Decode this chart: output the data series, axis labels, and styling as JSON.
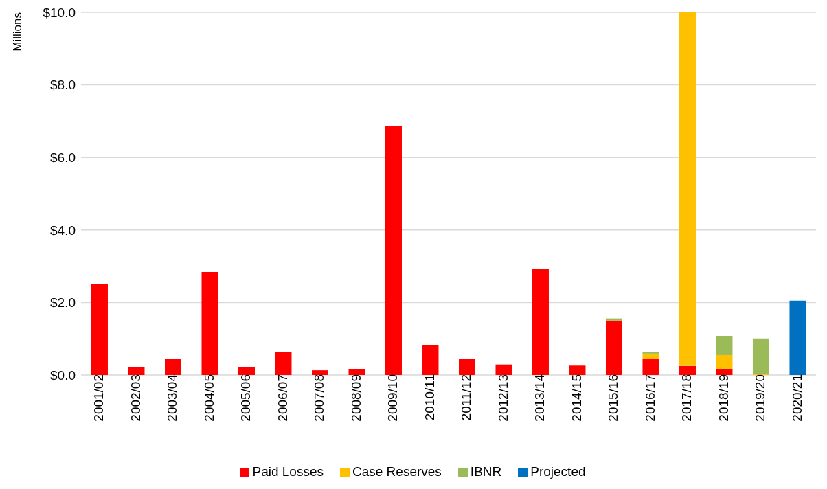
{
  "chart_data": {
    "type": "bar",
    "stacked": true,
    "ylabel": "Millions",
    "categories": [
      "2001/02",
      "2002/03",
      "2003/04",
      "2004/05",
      "2005/06",
      "2006/07",
      "2007/08",
      "2008/09",
      "2009/10",
      "2010/11",
      "2011/12",
      "2012/13",
      "2013/14",
      "2014/15",
      "2015/16",
      "2016/17",
      "2017/18",
      "2018/19",
      "2019/20",
      "2020/21"
    ],
    "series": [
      {
        "name": "Paid Losses",
        "color": "#ff0000",
        "values": [
          2.5,
          0.22,
          0.44,
          2.84,
          0.22,
          0.63,
          0.13,
          0.17,
          6.86,
          0.82,
          0.44,
          0.29,
          2.92,
          0.26,
          1.5,
          0.44,
          0.25,
          0.17,
          null,
          null
        ]
      },
      {
        "name": "Case Reserves",
        "color": "#ffc000",
        "values": [
          null,
          null,
          null,
          null,
          null,
          null,
          null,
          null,
          null,
          null,
          null,
          null,
          null,
          null,
          null,
          0.15,
          9.75,
          0.38,
          0.04,
          null
        ]
      },
      {
        "name": "IBNR",
        "color": "#9bbb59",
        "values": [
          null,
          null,
          null,
          null,
          null,
          null,
          null,
          null,
          null,
          null,
          null,
          null,
          null,
          null,
          0.06,
          0.04,
          null,
          0.53,
          0.97,
          null
        ]
      },
      {
        "name": "Projected",
        "color": "#0070c0",
        "values": [
          null,
          null,
          null,
          null,
          null,
          null,
          null,
          null,
          null,
          null,
          null,
          null,
          null,
          null,
          null,
          null,
          null,
          null,
          null,
          2.05
        ]
      }
    ],
    "ylim": [
      0,
      10
    ],
    "yticks": [
      {
        "value": 0,
        "label": "$0.0"
      },
      {
        "value": 2,
        "label": "$2.0"
      },
      {
        "value": 4,
        "label": "$4.0"
      },
      {
        "value": 6,
        "label": "$6.0"
      },
      {
        "value": 8,
        "label": "$8.0"
      },
      {
        "value": 10,
        "label": "$10.0"
      }
    ],
    "grid": "y",
    "legend": "bottom"
  }
}
